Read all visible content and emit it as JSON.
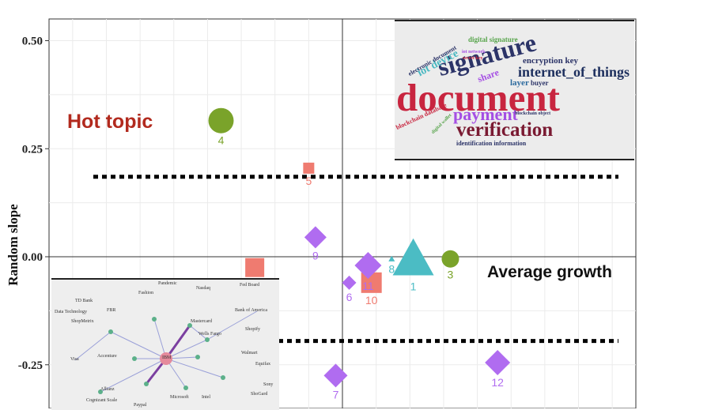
{
  "chart_data": {
    "type": "scatter",
    "title": "",
    "xlabel": "",
    "ylabel": "Random slope",
    "ylim": [
      -0.35,
      0.55
    ],
    "yticks": [
      0.5,
      0.25,
      0.0,
      -0.25
    ],
    "ytick_labels": [
      "0.50",
      "0.25",
      "0.00",
      "-0.25"
    ],
    "x_divider": 0,
    "thresholds": [
      0.185,
      -0.195
    ],
    "colors": {
      "green": "#7aa32a",
      "red": "#ef7b70",
      "purple": "#b06cf0",
      "teal": "#4bbcc4",
      "text": "#111111"
    },
    "points": [
      {
        "label": "1",
        "x": 1.05,
        "y": -0.005,
        "shape": "triangle",
        "color": "#4bbcc4",
        "size": 26
      },
      {
        "label": "3",
        "x": 1.6,
        "y": -0.005,
        "shape": "circle",
        "color": "#7aa32a",
        "size": 11
      },
      {
        "label": "4",
        "x": -1.8,
        "y": 0.315,
        "shape": "circle",
        "color": "#7aa32a",
        "size": 16
      },
      {
        "label": "5",
        "x": -0.5,
        "y": 0.205,
        "shape": "square",
        "color": "#ef7b70",
        "size": 7
      },
      {
        "label": "6",
        "x": 0.1,
        "y": -0.06,
        "shape": "diamond",
        "color": "#b06cf0",
        "size": 9
      },
      {
        "label": "7",
        "x": -0.1,
        "y": -0.275,
        "shape": "diamond",
        "color": "#b06cf0",
        "size": 15
      },
      {
        "label": "8",
        "x": 0.73,
        "y": -0.005,
        "shape": "triangle",
        "color": "#4bbcc4",
        "size": 4
      },
      {
        "label": "9",
        "x": -0.4,
        "y": 0.045,
        "shape": "diamond",
        "color": "#b06cf0",
        "size": 14
      },
      {
        "label": "10",
        "x": 0.43,
        "y": -0.06,
        "shape": "square",
        "color": "#ef7b70",
        "size": 13
      },
      {
        "label": "11",
        "x": 0.38,
        "y": -0.02,
        "shape": "diamond",
        "color": "#b06cf0",
        "size": 17
      },
      {
        "label": "12",
        "x": 2.3,
        "y": -0.245,
        "shape": "diamond",
        "color": "#b06cf0",
        "size": 16
      },
      {
        "label": "",
        "x": -1.3,
        "y": -0.025,
        "shape": "square",
        "color": "#ef7b70",
        "size": 12
      }
    ]
  },
  "annotations": {
    "hot_topic": "Hot topic",
    "average_growth": "Average growth"
  },
  "wordcloud": {
    "words": [
      "document",
      "signature",
      "verification",
      "payment",
      "internet_of_things",
      "iot device",
      "encryption key",
      "electronic document",
      "digital signature",
      "share",
      "layer",
      "buyer",
      "blockchain database",
      "identification information",
      "secret key",
      "iot network",
      "digital wallet",
      "blockchain object"
    ]
  },
  "network": {
    "labels": [
      "Pandemic",
      "Nasdaq",
      "Fed Board",
      "TD Bank",
      "Data Technology",
      "FBR",
      "ShopMetrix",
      "Bank of America",
      "Fashion",
      "Visa",
      "Accenture",
      "Mastercard",
      "Wells Fargo",
      "Walmart",
      "Equifax",
      "Cognizant Scale",
      "Allianz",
      "Microsoft",
      "Intel",
      "Paypal",
      "Shopify",
      "IBM",
      "Sony",
      "ShoGard"
    ]
  }
}
